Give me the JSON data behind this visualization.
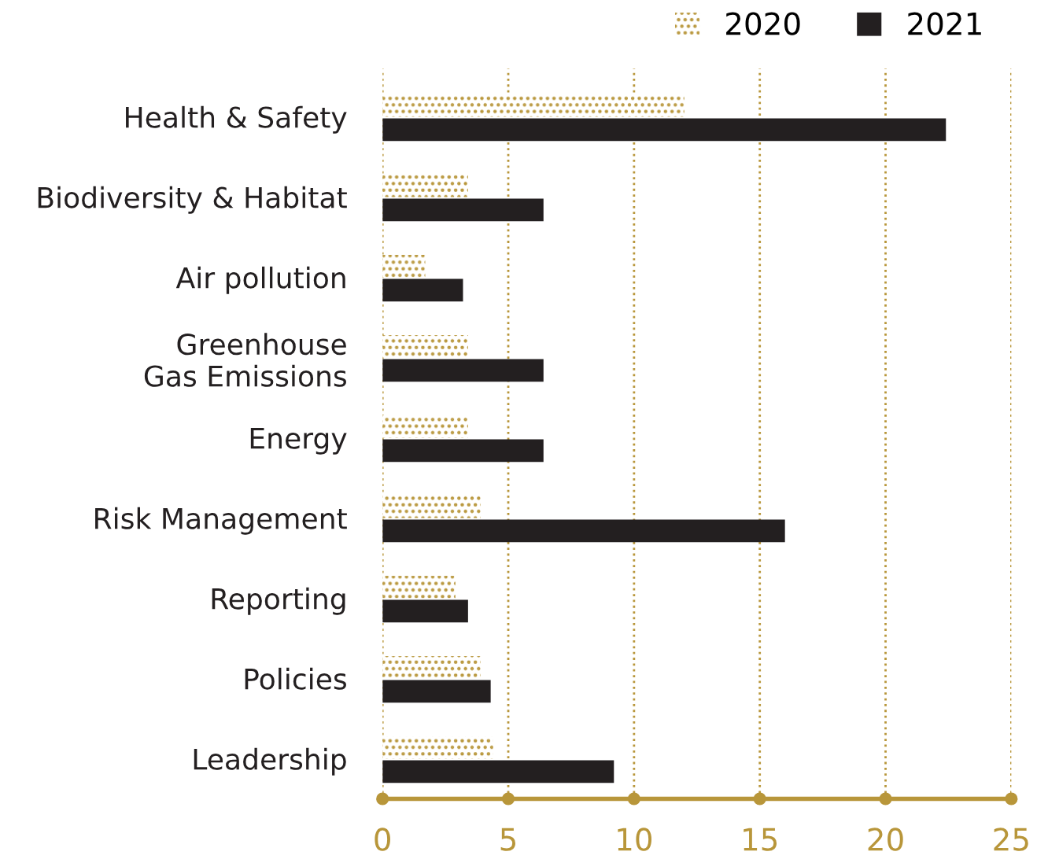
{
  "chart_data": {
    "type": "bar",
    "orientation": "horizontal",
    "categories": [
      "Health & Safety",
      "Biodiversity & Habitat",
      "Air pollution",
      "Greenhouse\nGas Emissions",
      "Energy",
      "Risk Management",
      "Reporting",
      "Policies",
      "Leadership"
    ],
    "series": [
      {
        "name": "2020",
        "color": "#b8963a",
        "values": [
          12.0,
          3.4,
          1.7,
          3.4,
          3.4,
          3.9,
          2.9,
          3.9,
          4.4
        ]
      },
      {
        "name": "2021",
        "color": "#231f20",
        "values": [
          22.4,
          6.4,
          3.2,
          6.4,
          6.4,
          16.0,
          3.4,
          4.3,
          9.2
        ]
      }
    ],
    "xlim": [
      0,
      25
    ],
    "xticks": [
      0,
      5,
      10,
      15,
      20,
      25
    ],
    "grid": "x",
    "legend": "top right"
  }
}
